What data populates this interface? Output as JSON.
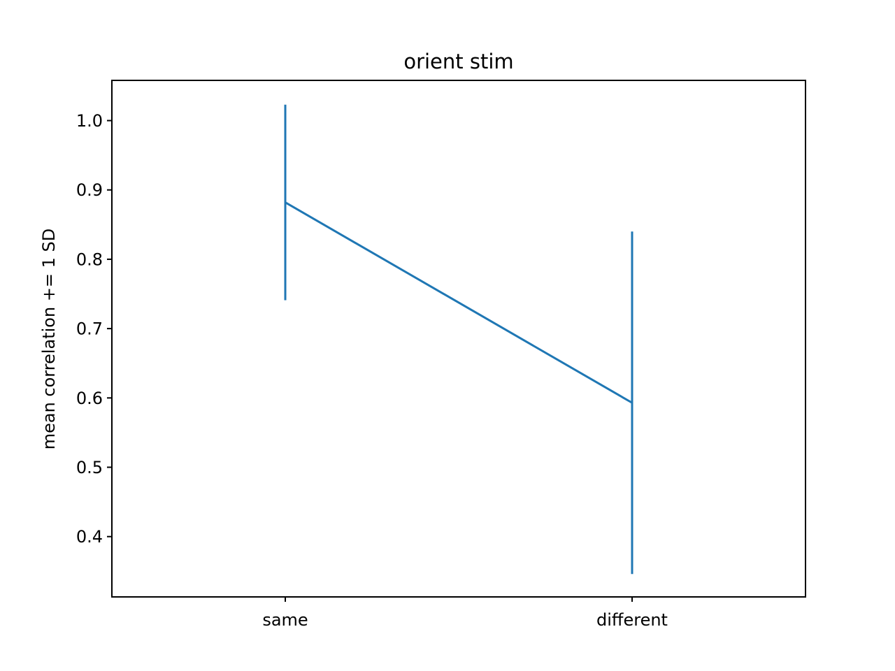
{
  "chart_data": {
    "type": "line",
    "title": "orient stim",
    "xlabel": "",
    "ylabel": "mean correlation += 1 SD",
    "categories": [
      "same",
      "different"
    ],
    "series": [
      {
        "values": [
          0.882,
          0.593
        ],
        "error": [
          0.141,
          0.247
        ],
        "color": "#1f77b4"
      }
    ],
    "ylim": [
      0.313,
      1.058
    ],
    "yticks": [
      "0.4",
      "0.5",
      "0.6",
      "0.7",
      "0.8",
      "0.9",
      "1.0"
    ],
    "grid": false
  }
}
